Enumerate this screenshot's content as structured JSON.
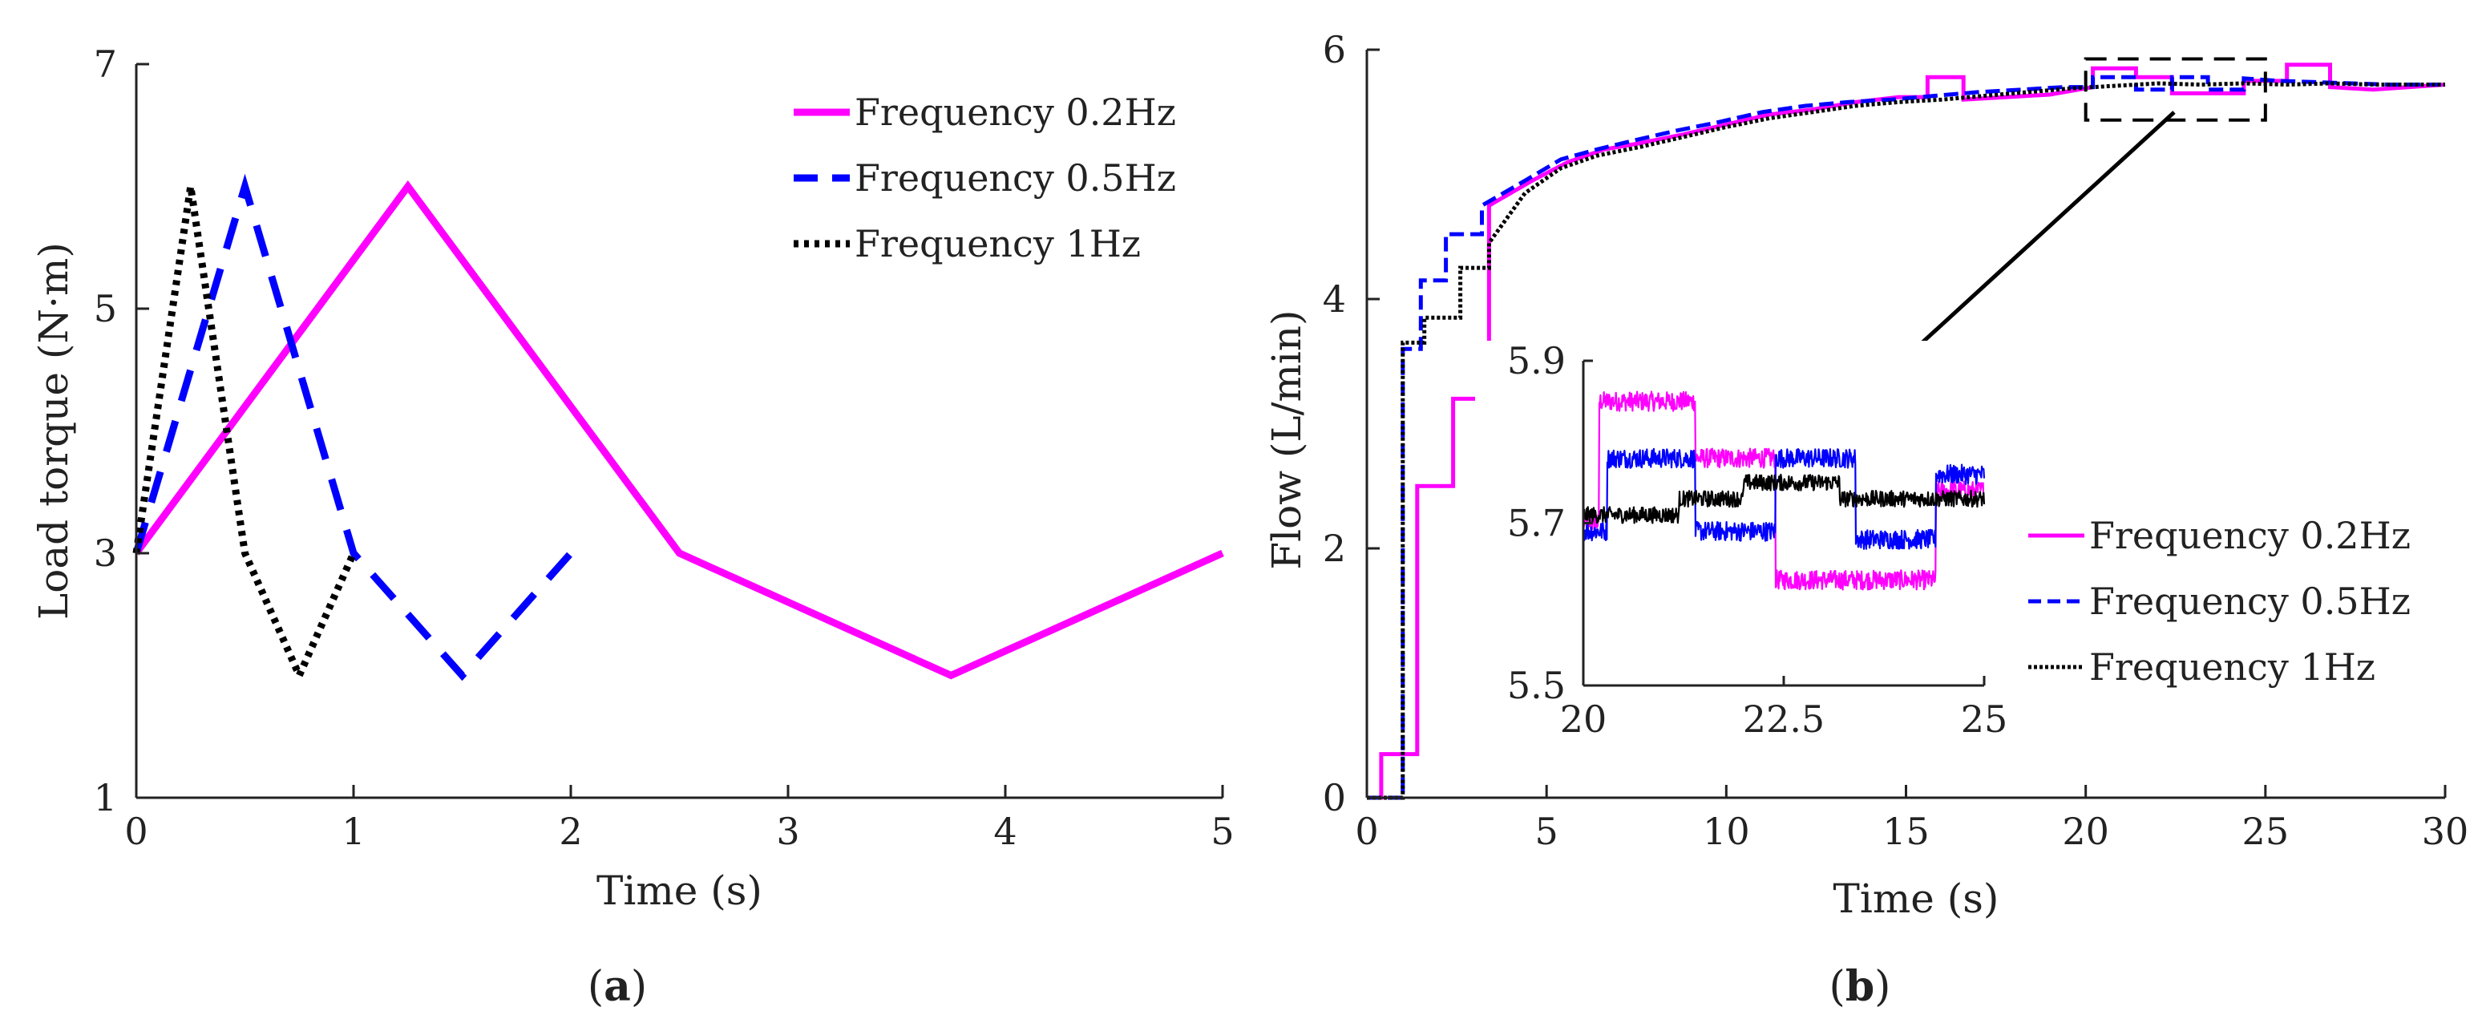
{
  "colors": {
    "magenta": "#ff00ff",
    "blue": "#0000ff",
    "black": "#000000",
    "axis": "#222222"
  },
  "captions": {
    "a_open": "(",
    "a_letter": "a",
    "a_close": ")",
    "b_open": "(",
    "b_letter": "b",
    "b_close": ")"
  },
  "chart_data": [
    {
      "id": "a",
      "type": "line",
      "xlabel": "Time (s)",
      "ylabel": "Load torque (N·m)",
      "xlim": [
        0,
        5
      ],
      "ylim": [
        1,
        7
      ],
      "xticks": [
        0,
        1,
        2,
        3,
        4,
        5
      ],
      "yticks": [
        1,
        3,
        5,
        7
      ],
      "legend_position": "top-right",
      "series": [
        {
          "name": "Frequency 0.2Hz",
          "style": "solid",
          "color": "#ff00ff",
          "x": [
            0,
            1.25,
            2.5,
            3.75,
            5
          ],
          "y": [
            3,
            6,
            3,
            2,
            3
          ]
        },
        {
          "name": "Frequency 0.5Hz",
          "style": "dashed",
          "color": "#0000ff",
          "x": [
            0,
            0.5,
            1,
            1.5,
            2
          ],
          "y": [
            3,
            6,
            3,
            2,
            3
          ]
        },
        {
          "name": "Frequency 1Hz",
          "style": "dotted",
          "color": "#000000",
          "x": [
            0,
            0.25,
            0.5,
            0.75,
            1
          ],
          "y": [
            3,
            6,
            3,
            2,
            3
          ]
        }
      ]
    },
    {
      "id": "b",
      "type": "line",
      "xlabel": "Time (s)",
      "ylabel": "Flow (L/min)",
      "xlim": [
        0,
        30
      ],
      "ylim": [
        0,
        6
      ],
      "xticks": [
        0,
        5,
        10,
        15,
        20,
        25,
        30
      ],
      "yticks": [
        0,
        2,
        4,
        6
      ],
      "legend_position": "lower-right",
      "zoom_box": {
        "x": [
          20,
          25
        ],
        "y": [
          5.5,
          5.9
        ]
      },
      "series": [
        {
          "name": "Frequency 0.2Hz",
          "style": "solid",
          "color": "#ff00ff",
          "x": [
            0,
            0.4,
            0.4,
            1.4,
            1.4,
            2.4,
            2.4,
            3.4,
            3.4,
            4.6,
            5.6,
            6.6,
            7.6,
            8.8,
            10.0,
            11.2,
            12.4,
            13.6,
            14.8,
            15.6,
            15.6,
            16.6,
            16.6,
            17.8,
            19.0,
            20.2,
            20.2,
            21.4,
            21.4,
            22.4,
            22.4,
            24.4,
            24.4,
            25.6,
            25.6,
            26.8,
            26.8,
            28.0,
            29.0,
            30.0
          ],
          "y": [
            0,
            0,
            0.35,
            0.35,
            2.5,
            2.5,
            3.2,
            3.2,
            4.75,
            4.95,
            5.1,
            5.2,
            5.25,
            5.32,
            5.4,
            5.48,
            5.52,
            5.58,
            5.62,
            5.62,
            5.78,
            5.78,
            5.6,
            5.62,
            5.64,
            5.7,
            5.85,
            5.85,
            5.78,
            5.78,
            5.65,
            5.65,
            5.75,
            5.75,
            5.88,
            5.88,
            5.7,
            5.68,
            5.7,
            5.72
          ]
        },
        {
          "name": "Frequency 0.5Hz",
          "style": "dashed",
          "color": "#0000ff",
          "x": [
            0,
            1.0,
            1.0,
            1.5,
            1.5,
            2.2,
            2.2,
            3.2,
            3.2,
            4.4,
            5.4,
            6.4,
            7.4,
            8.6,
            9.8,
            11.0,
            12.2,
            13.4,
            14.6,
            15.8,
            17.0,
            18.2,
            19.4,
            20.2,
            20.2,
            21.4,
            21.4,
            22.4,
            22.4,
            23.4,
            23.4,
            24.4,
            24.4,
            25.4,
            26.4,
            27.4,
            28.4,
            30.0
          ],
          "y": [
            0,
            0,
            3.6,
            3.6,
            4.15,
            4.15,
            4.52,
            4.52,
            4.75,
            4.95,
            5.12,
            5.2,
            5.27,
            5.35,
            5.42,
            5.5,
            5.55,
            5.58,
            5.6,
            5.63,
            5.66,
            5.68,
            5.7,
            5.7,
            5.78,
            5.78,
            5.68,
            5.68,
            5.78,
            5.78,
            5.68,
            5.68,
            5.77,
            5.75,
            5.74,
            5.73,
            5.72,
            5.72
          ]
        },
        {
          "name": "Frequency 1Hz",
          "style": "dotted",
          "color": "#000000",
          "x": [
            0,
            1.0,
            1.0,
            1.6,
            1.6,
            2.6,
            2.6,
            3.4,
            3.4,
            4.4,
            5.4,
            6.4,
            7.6,
            8.8,
            10.0,
            11.2,
            12.4,
            13.6,
            14.8,
            16.0,
            17.2,
            18.4,
            19.6,
            20.8,
            22.0,
            23.2,
            24.4,
            25.6,
            26.8,
            28.0,
            29.2,
            30.0
          ],
          "y": [
            0,
            0,
            3.65,
            3.65,
            3.85,
            3.85,
            4.25,
            4.25,
            4.45,
            4.85,
            5.05,
            5.15,
            5.22,
            5.3,
            5.38,
            5.45,
            5.5,
            5.55,
            5.58,
            5.6,
            5.63,
            5.66,
            5.69,
            5.71,
            5.73,
            5.72,
            5.73,
            5.72,
            5.73,
            5.72,
            5.72,
            5.72
          ]
        }
      ]
    },
    {
      "id": "b-inset",
      "type": "line",
      "xlim": [
        20,
        25
      ],
      "ylim": [
        5.5,
        5.9
      ],
      "xticks": [
        20,
        22.5,
        25
      ],
      "xtick_labels": [
        "20",
        "22.5",
        "25"
      ],
      "yticks": [
        5.5,
        5.7,
        5.9
      ],
      "ytick_labels": [
        "5.5",
        "5.7",
        "5.9"
      ],
      "series": [
        {
          "name": "Frequency 0.2Hz",
          "color": "#ff00ff",
          "noise": 0.012,
          "steps": [
            [
              20,
              5.7
            ],
            [
              20.2,
              5.85
            ],
            [
              21.4,
              5.78
            ],
            [
              22.4,
              5.63
            ],
            [
              24.4,
              5.74
            ],
            [
              25,
              5.74
            ]
          ]
        },
        {
          "name": "Frequency 0.5Hz",
          "color": "#0000ff",
          "noise": 0.012,
          "steps": [
            [
              20,
              5.69
            ],
            [
              20.3,
              5.78
            ],
            [
              21.4,
              5.69
            ],
            [
              22.4,
              5.78
            ],
            [
              23.4,
              5.68
            ],
            [
              24.4,
              5.76
            ],
            [
              25,
              5.76
            ]
          ]
        },
        {
          "name": "Frequency 1Hz",
          "color": "#000000",
          "noise": 0.01,
          "steps": [
            [
              20,
              5.71
            ],
            [
              21.2,
              5.73
            ],
            [
              22.0,
              5.75
            ],
            [
              23.2,
              5.73
            ],
            [
              25,
              5.73
            ]
          ]
        }
      ]
    }
  ]
}
